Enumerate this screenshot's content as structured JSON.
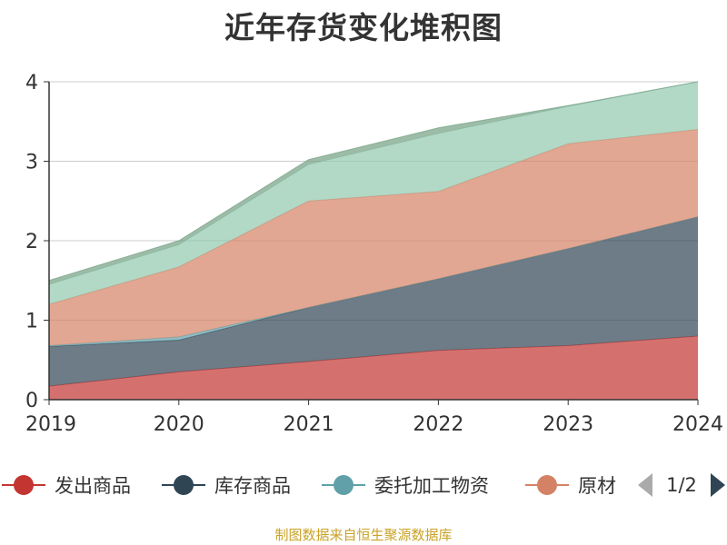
{
  "chart_data": {
    "type": "area",
    "stacked": true,
    "title": "近年存货变化堆积图",
    "x": [
      "2019",
      "2020",
      "2021",
      "2022",
      "2023",
      "2024"
    ],
    "ylim": [
      0,
      4
    ],
    "yticks": [
      "0",
      "1",
      "2",
      "3",
      "4"
    ],
    "grid": true,
    "series": [
      {
        "name": "发出商品",
        "color": "#c23531",
        "values": [
          0.17,
          0.35,
          0.48,
          0.62,
          0.68,
          0.8
        ]
      },
      {
        "name": "库存商品",
        "color": "#2f4554",
        "values": [
          0.5,
          0.4,
          0.68,
          0.9,
          1.22,
          1.5
        ]
      },
      {
        "name": "委托加工物资",
        "color": "#61a0a8",
        "values": [
          0.01,
          0.04,
          0.0,
          0.0,
          0.0,
          0.0
        ]
      },
      {
        "name": "原材",
        "color": "#d48265",
        "values": [
          0.52,
          0.88,
          1.34,
          1.1,
          1.32,
          1.1
        ]
      },
      {
        "name": "",
        "color": "#91c7ae",
        "values": [
          0.25,
          0.28,
          0.46,
          0.73,
          0.47,
          0.6
        ]
      },
      {
        "name": "",
        "color": "#749f83",
        "values": [
          0.05,
          0.05,
          0.06,
          0.07,
          0.01,
          0.0
        ]
      }
    ],
    "legend_position": "bottom"
  },
  "legend": {
    "items": [
      "发出商品",
      "库存商品",
      "委托加工物资",
      "原材"
    ],
    "page_text": "1/2"
  },
  "source_note": "制图数据来自恒生聚源数据库"
}
